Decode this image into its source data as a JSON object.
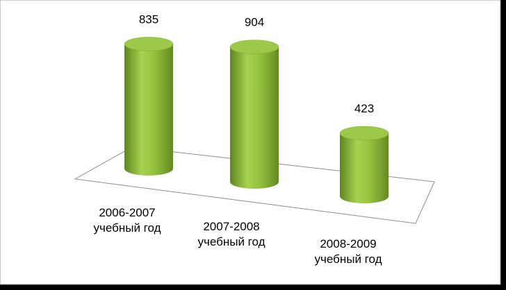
{
  "chart_data": {
    "type": "bar",
    "style": "cylinder",
    "categories": [
      "2006-2007 учебный год",
      "2007-2008 учебный год",
      "2008-2009 учебный год"
    ],
    "values": [
      835,
      904,
      423
    ],
    "color": "#8cbf3f"
  }
}
